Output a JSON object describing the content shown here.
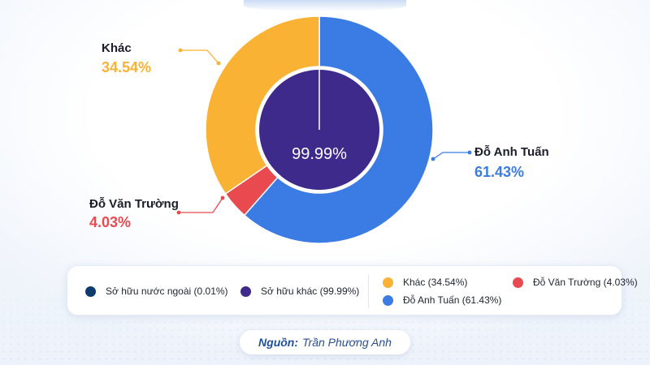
{
  "chart_data": {
    "type": "pie",
    "outer_ring": [
      {
        "name": "Đỗ Anh Tuấn",
        "value": 61.43,
        "value_label": "61.43%",
        "color": "#3b7be4"
      },
      {
        "name": "Đỗ Văn Trường",
        "value": 4.03,
        "value_label": "4.03%",
        "color": "#e84a4f"
      },
      {
        "name": "Khác",
        "value": 34.54,
        "value_label": "34.54%",
        "color": "#f9b233"
      }
    ],
    "inner_circle": [
      {
        "name": "Sở hữu nước ngoài",
        "value": 0.01,
        "color": "#0d3b6e"
      },
      {
        "name": "Sở hữu khác",
        "value": 99.99,
        "color": "#3d2a8a"
      }
    ],
    "center_label": "99.99%"
  },
  "legend": {
    "left": [
      {
        "label": "Sở hữu nước ngoài (0.01%)",
        "color": "#0d3b6e"
      },
      {
        "label": "Sở hữu khác (99.99%)",
        "color": "#3d2a8a"
      }
    ],
    "right": [
      {
        "label": "Khác (34.54%)",
        "color": "#f9b233"
      },
      {
        "label": "Đỗ Văn Trường (4.03%)",
        "color": "#e84a4f"
      },
      {
        "label": "Đỗ Anh Tuấn (61.43%)",
        "color": "#3b7be4"
      }
    ]
  },
  "source": {
    "label": "Nguồn:",
    "value": "Trần Phương Anh"
  }
}
